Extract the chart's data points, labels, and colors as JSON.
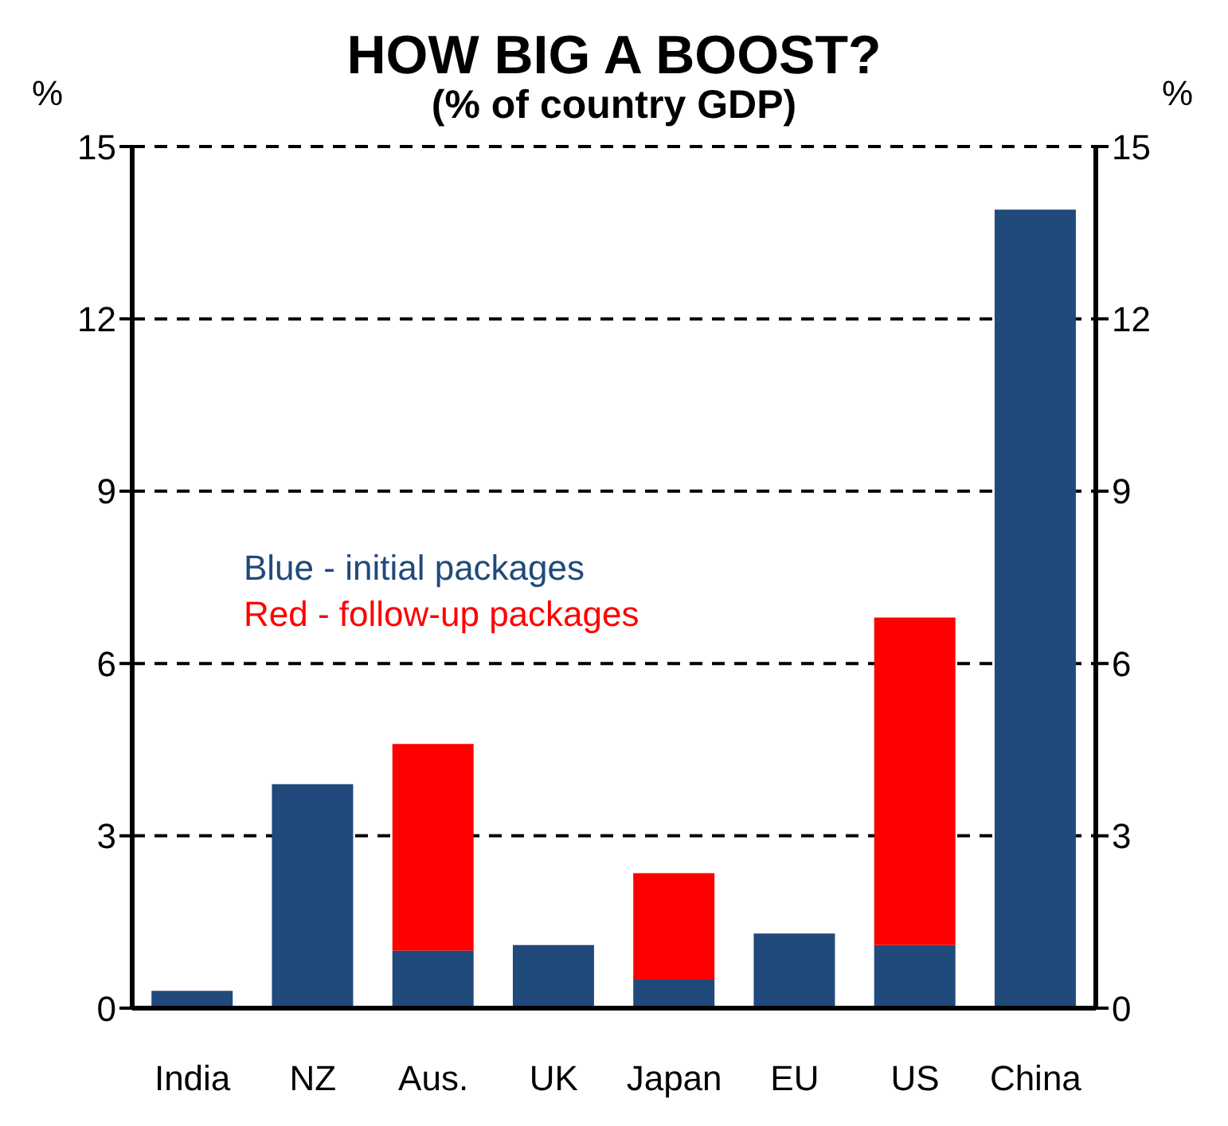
{
  "chart_data": {
    "type": "bar",
    "title": "HOW BIG  A BOOST?",
    "subtitle": "(% of country GDP)",
    "ylabel": "%",
    "y2label": "%",
    "categories": [
      "India",
      "NZ",
      "Aus.",
      "UK",
      "Japan",
      "EU",
      "US",
      "China"
    ],
    "series": [
      {
        "color": "#204a7c",
        "values": [
          0.3,
          3.9,
          1.0,
          1.1,
          0.5,
          1.3,
          1.1,
          13.9
        ]
      },
      {
        "color": "#ff0000",
        "values": [
          null,
          null,
          3.6,
          null,
          1.85,
          null,
          5.7,
          null
        ]
      }
    ],
    "stacked": true,
    "ylim": [
      0,
      15
    ],
    "yticks": [
      0,
      3,
      6,
      9,
      12,
      15
    ],
    "y2lim": [
      0,
      15
    ],
    "y2ticks": [
      0,
      3,
      6,
      9,
      12,
      15
    ],
    "grid": "y",
    "line_style": "dashed",
    "legend": false,
    "annotations": [
      "Blue - initial packages",
      "Red - follow-up packages"
    ]
  }
}
